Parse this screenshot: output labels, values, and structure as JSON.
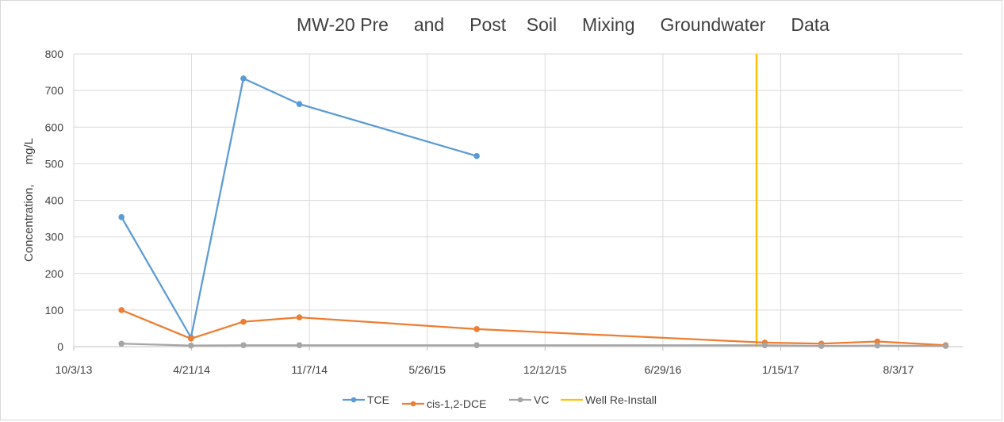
{
  "chart_data": {
    "type": "line",
    "title": "MW-20 Pre     and     Post    Soil     Mixing     Groundwater     Data",
    "xlabel": "",
    "ylabel": "Concentration,      mg/L",
    "x_ticks": [
      "10/3/13",
      "4/21/14",
      "11/7/14",
      "5/26/15",
      "12/12/15",
      "6/29/16",
      "1/15/17",
      "8/3/17"
    ],
    "xlim": [
      "2013-10-03",
      "2017-11-20"
    ],
    "ylim": [
      0,
      800
    ],
    "y_ticks": [
      0,
      100,
      200,
      300,
      400,
      500,
      600,
      700,
      800
    ],
    "grid": true,
    "legend_position": "bottom",
    "series": [
      {
        "name": "TCE",
        "color": "#5b9bd5",
        "points": [
          {
            "x": "2013-12-23",
            "y": 354
          },
          {
            "x": "2014-04-20",
            "y": 25
          },
          {
            "x": "2014-07-18",
            "y": 733
          },
          {
            "x": "2014-10-21",
            "y": 663
          },
          {
            "x": "2015-08-18",
            "y": 521
          }
        ]
      },
      {
        "name": "cis-1,2-DCE",
        "color": "#ed7d31",
        "points": [
          {
            "x": "2013-12-23",
            "y": 100
          },
          {
            "x": "2014-04-20",
            "y": 22
          },
          {
            "x": "2014-07-18",
            "y": 68
          },
          {
            "x": "2014-10-21",
            "y": 80
          },
          {
            "x": "2015-08-18",
            "y": 48
          },
          {
            "x": "2016-12-19",
            "y": 11
          },
          {
            "x": "2017-03-25",
            "y": 8
          },
          {
            "x": "2017-06-28",
            "y": 14
          },
          {
            "x": "2017-10-22",
            "y": 4
          }
        ]
      },
      {
        "name": "VC",
        "color": "#a5a5a5",
        "points": [
          {
            "x": "2013-12-23",
            "y": 8
          },
          {
            "x": "2014-04-20",
            "y": 3
          },
          {
            "x": "2014-07-18",
            "y": 4
          },
          {
            "x": "2014-10-21",
            "y": 4
          },
          {
            "x": "2015-08-18",
            "y": 4
          },
          {
            "x": "2016-12-19",
            "y": 4
          },
          {
            "x": "2017-03-25",
            "y": 2
          },
          {
            "x": "2017-06-28",
            "y": 3
          },
          {
            "x": "2017-10-22",
            "y": 2
          }
        ]
      }
    ],
    "reference_line": {
      "name": "Well Re-Install",
      "color": "#ffc000",
      "x": "2016-12-05"
    }
  }
}
